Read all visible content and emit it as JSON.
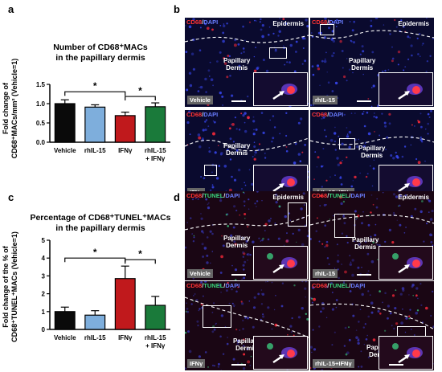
{
  "panels": {
    "a": "a",
    "b": "b",
    "c": "c",
    "d": "d"
  },
  "chart_data": [
    {
      "type": "bar",
      "title_line1": "Number of CD68⁺MACs",
      "title_line2": "in the papillary dermis",
      "ylabel_line1": "Fold change of",
      "ylabel_line2": "CD68⁺MACs/mm² (Vehicle=1)",
      "categories": [
        "Vehicle",
        "rhIL-15",
        "IFNγ",
        "rhIL-15 + IFNγ"
      ],
      "category_lines": [
        [
          "Vehicle"
        ],
        [
          "rhIL-15"
        ],
        [
          "IFNγ"
        ],
        [
          "rhIL-15",
          "+ IFNγ"
        ]
      ],
      "values": [
        1.0,
        0.91,
        0.69,
        0.92
      ],
      "errors": [
        0.1,
        0.06,
        0.09,
        0.1
      ],
      "colors": [
        "#0a0a0a",
        "#7eaedc",
        "#c0191c",
        "#1a7a3a"
      ],
      "ylim": [
        0,
        1.5
      ],
      "yticks": [
        "0.0",
        "0.5",
        "1.0",
        "1.5"
      ],
      "ytick_values": [
        0,
        0.5,
        1.0,
        1.5
      ],
      "significance": [
        {
          "from": 0,
          "to": 2,
          "label": "*"
        },
        {
          "from": 2,
          "to": 3,
          "label": "*"
        }
      ]
    },
    {
      "type": "bar",
      "title_line1": "Percentage of CD68⁺TUNEL⁺MACs",
      "title_line2": "in the papillary dermis",
      "ylabel_line1": "Fold change of the % of",
      "ylabel_line2": "CD68⁺TUNEL⁺MACs (Vehicle=1)",
      "categories": [
        "Vehicle",
        "rhIL-15",
        "IFNγ",
        "rhIL-15 + IFNγ"
      ],
      "category_lines": [
        [
          "Vehicle"
        ],
        [
          "rhIL-15"
        ],
        [
          "IFNγ"
        ],
        [
          "rhIL-15",
          "+ IFNγ"
        ]
      ],
      "values": [
        1.0,
        0.8,
        2.85,
        1.35
      ],
      "errors": [
        0.25,
        0.25,
        0.7,
        0.5
      ],
      "colors": [
        "#0a0a0a",
        "#7eaedc",
        "#c0191c",
        "#1a7a3a"
      ],
      "ylim": [
        0,
        5
      ],
      "yticks": [
        "0",
        "1",
        "2",
        "3",
        "4",
        "5"
      ],
      "ytick_values": [
        0,
        1,
        2,
        3,
        4,
        5
      ],
      "significance": [
        {
          "from": 0,
          "to": 2,
          "label": "*"
        },
        {
          "from": 2,
          "to": 3,
          "label": "*"
        }
      ]
    }
  ],
  "micrographs": {
    "b": {
      "stain_red": "CD68",
      "stain_sep": "/",
      "stain_blue": "DAPI",
      "epidermis": "Epidermis",
      "papillary": "Papillary",
      "dermis": "Dermis",
      "conditions": [
        "Vehicle",
        "rhIL-15",
        "IFNγ",
        "rhIL-15+IFNγ"
      ]
    },
    "d": {
      "stain_red": "CD68",
      "stain_green": "TUNEL",
      "stain_blue": "DAPI",
      "stain_sep": "/",
      "epidermis": "Epidermis",
      "papillary": "Papillary",
      "dermis": "Dermis",
      "conditions": [
        "Vehicle",
        "rhIL-15",
        "IFNγ",
        "rhIL-15+IFNγ"
      ]
    }
  }
}
